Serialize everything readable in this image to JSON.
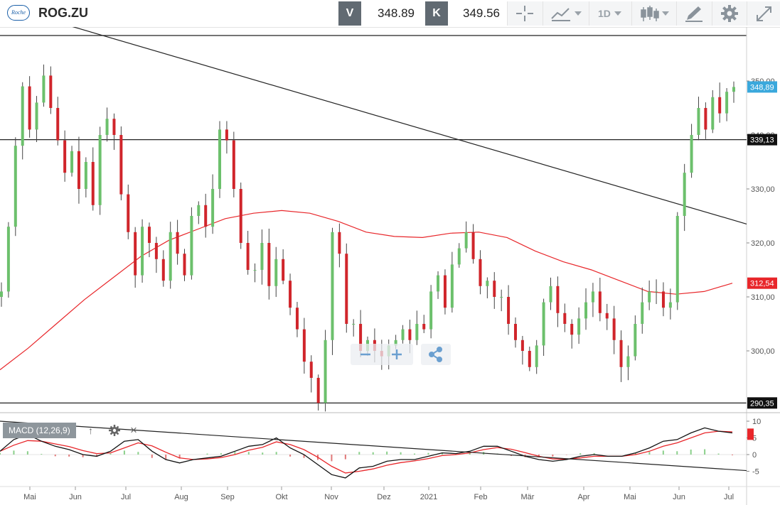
{
  "toolbar": {
    "symbol": "ROG.ZU",
    "logo_text": "Roche",
    "bid_tag": "V",
    "bid_value": "348.89",
    "ask_tag": "K",
    "ask_value": "349.56",
    "interval": "1D"
  },
  "macd": {
    "label": "MACD (12,26,9)",
    "up": "↑",
    "close": "×"
  },
  "chart_data": [
    {
      "type": "candlestick",
      "x_months": [
        "Mai",
        "Jun",
        "Jul",
        "Aug",
        "Sep",
        "Okt",
        "Nov",
        "Dez",
        "2021",
        "Feb",
        "Mär",
        "Apr",
        "Mai",
        "Jun",
        "Jul"
      ],
      "y_ticks": [
        "300,00",
        "310,00",
        "320,00",
        "330,00",
        "340,00",
        "350,00"
      ],
      "ylim": [
        289,
        359
      ],
      "markers": {
        "last": {
          "label": "348,89",
          "value": 348.89,
          "color": "#3aa8dc"
        },
        "hline_top": {
          "label": "339,13",
          "value": 339.13
        },
        "hline_low": {
          "label": "290,35",
          "value": 290.35
        },
        "ma": {
          "label": "312,54",
          "value": 312.54,
          "color": "#e8262a"
        }
      },
      "trendline": {
        "start": 364,
        "end": 323.5
      },
      "ma_series": [
        296.5,
        300.5,
        305,
        309.5,
        313.5,
        317.5,
        320.5,
        322.5,
        324.5,
        325.5,
        326,
        325.5,
        324,
        322,
        321.2,
        321,
        321.8,
        322,
        321,
        318.5,
        316.5,
        315,
        313,
        311,
        310.5,
        311,
        312.54
      ],
      "close_series": [
        311,
        323,
        338,
        349,
        341,
        346,
        351,
        345,
        339,
        333,
        337,
        330,
        335,
        327,
        340,
        343,
        340,
        329,
        322,
        314,
        323,
        320,
        317,
        313,
        322,
        318,
        314,
        325,
        327,
        323,
        330,
        341,
        339,
        330,
        320,
        315,
        315,
        320,
        312,
        317,
        313,
        308,
        304,
        298,
        295,
        290.35,
        302,
        322,
        318,
        305,
        305,
        300,
        302,
        300,
        299,
        301,
        302,
        304,
        302,
        305,
        304,
        311,
        314,
        308,
        316,
        319,
        322,
        317,
        312,
        313,
        310,
        310,
        305,
        302,
        300,
        297,
        301,
        309,
        312,
        307,
        305,
        303,
        306,
        309,
        311,
        307,
        306,
        302,
        297,
        299,
        305,
        309,
        311,
        311,
        308,
        309,
        325,
        333,
        340,
        345,
        341,
        347,
        344,
        348,
        348.89
      ]
    },
    {
      "type": "macd",
      "y_ticks": [
        "10",
        "5",
        "0",
        "-5"
      ],
      "ylim": [
        -8,
        11
      ],
      "last_value_color": "#e8262a",
      "trendline": {
        "start": 10,
        "end": -4.8
      },
      "macd_series": [
        1,
        4.5,
        6,
        4,
        2.5,
        1.5,
        0,
        -0.5,
        1,
        4,
        4.5,
        1,
        -1.5,
        -2.5,
        -1.5,
        -1,
        -0.5,
        1,
        2.5,
        3,
        5,
        2,
        0,
        -3,
        -6,
        -7,
        -4,
        -3.5,
        -2,
        -1.5,
        -1.5,
        -0.5,
        0.5,
        0.3,
        1,
        2.5,
        2.5,
        1,
        -0.5,
        -1.5,
        -2,
        -1.5,
        -0.5,
        0,
        -0.5,
        -0.5,
        0.5,
        2,
        4,
        4.5,
        6.5,
        8,
        7,
        6.5
      ],
      "signal_series": [
        1,
        2.8,
        4.2,
        4,
        3.2,
        2.4,
        1.2,
        0.3,
        0.5,
        2,
        3.5,
        2.6,
        0.7,
        -1,
        -1.5,
        -1.3,
        -0.9,
        0,
        1.3,
        2.2,
        3.8,
        3,
        1.5,
        -0.8,
        -3.5,
        -5.5,
        -5,
        -4.3,
        -3.2,
        -2.4,
        -1.9,
        -1.2,
        -0.3,
        0,
        0.5,
        1.5,
        2.1,
        1.6,
        0.6,
        -0.5,
        -1.3,
        -1.4,
        -1,
        -0.5,
        -0.5,
        -0.5,
        0,
        1,
        2.5,
        3.5,
        5,
        6.5,
        7,
        6.8
      ],
      "hist_series": [
        0.5,
        1.2,
        1,
        0.2,
        -0.5,
        -0.6,
        -0.8,
        -0.6,
        0.3,
        1.2,
        0.8,
        -1,
        -1.5,
        -1.2,
        0,
        0.3,
        0.4,
        0.8,
        0.8,
        0.6,
        0.8,
        -0.6,
        -1,
        -1.6,
        -2,
        -1.4,
        0.8,
        0.7,
        0.9,
        0.7,
        0.3,
        0.5,
        0.6,
        0.2,
        0.4,
        0.8,
        0.3,
        -0.4,
        -0.8,
        -0.8,
        -0.6,
        -0.1,
        0.4,
        0.4,
        0,
        0,
        0.4,
        0.8,
        1.2,
        1,
        1.5,
        1.6,
        0.3,
        -0.2
      ]
    }
  ]
}
